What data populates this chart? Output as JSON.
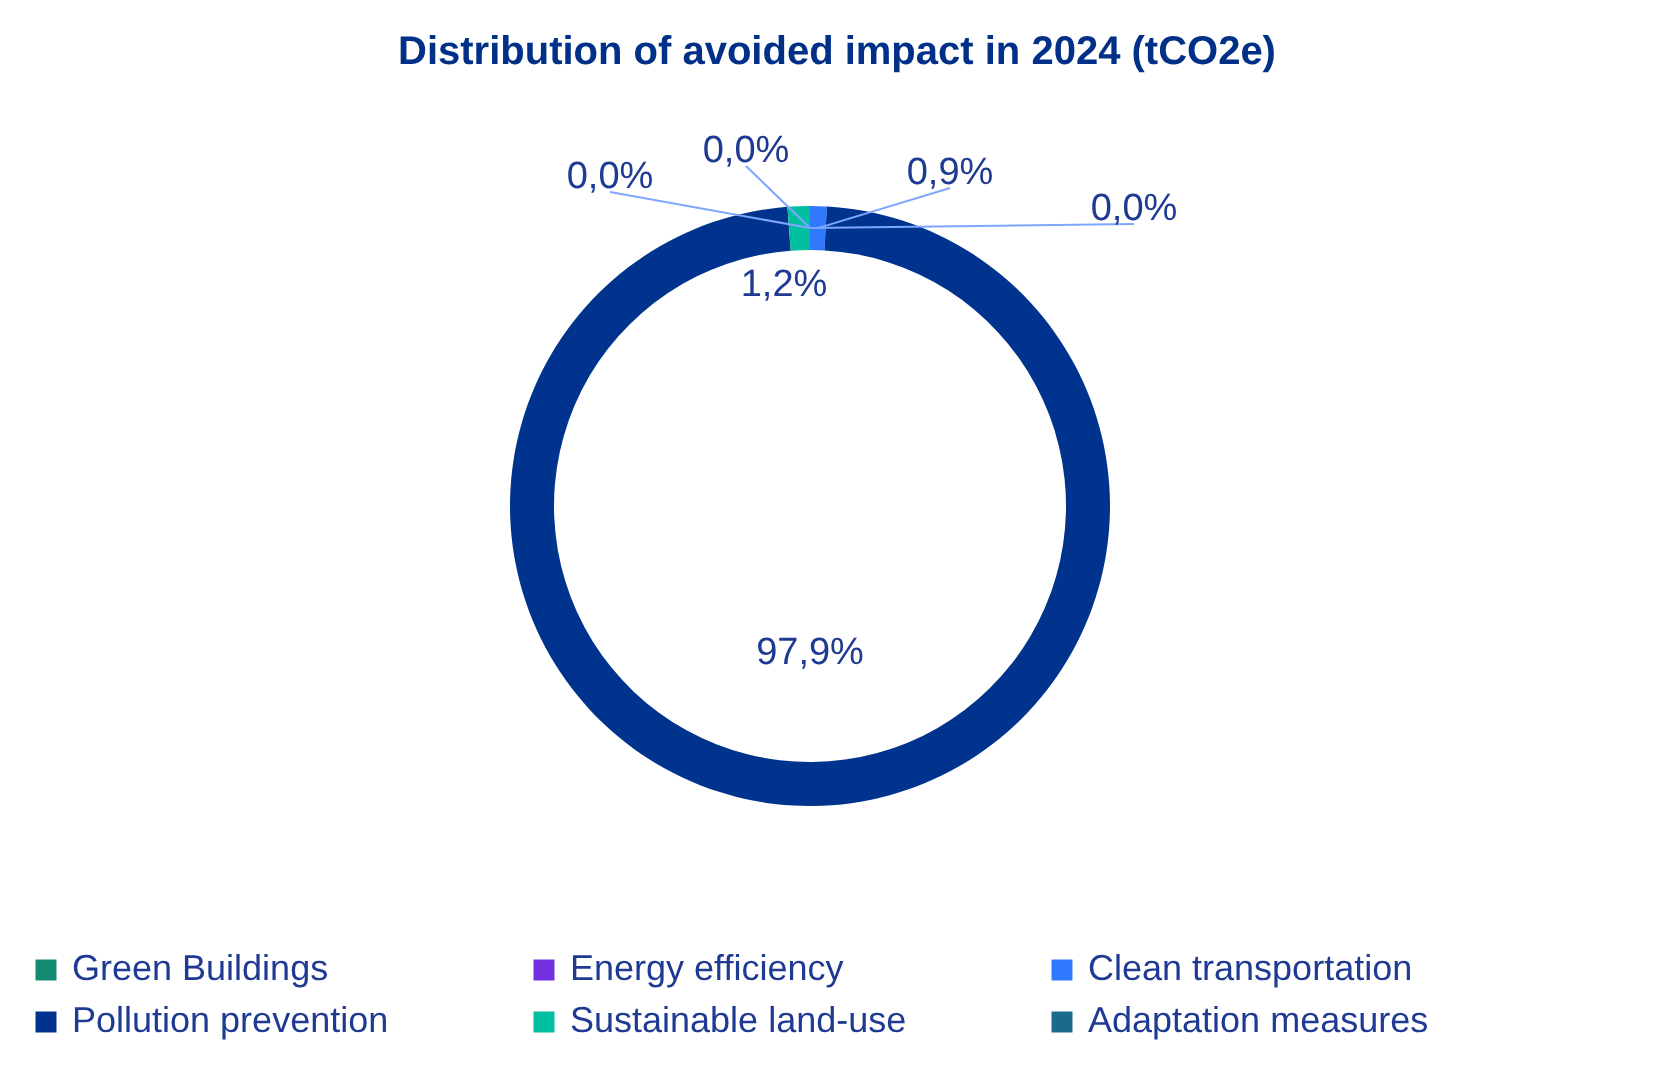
{
  "chart_data": {
    "type": "donut",
    "title": "Distribution of avoided impact in 2024 (tCO2e)",
    "categories": [
      "Green Buildings",
      "Energy efficiency",
      "Clean transportation",
      "Pollution prevention",
      "Sustainable land-use",
      "Adaptation measures"
    ],
    "values": [
      0,
      0,
      0.9,
      97.9,
      1.2,
      0
    ],
    "value_labels": [
      "0,0%",
      "0,0%",
      "0,9%",
      "97,9%",
      "1,2%",
      "0,0%"
    ],
    "colors": [
      "#138a72",
      "#7030e0",
      "#2f78ff",
      "#00338d",
      "#00bfa0",
      "#1a6b8a"
    ],
    "legend": "bottom"
  }
}
